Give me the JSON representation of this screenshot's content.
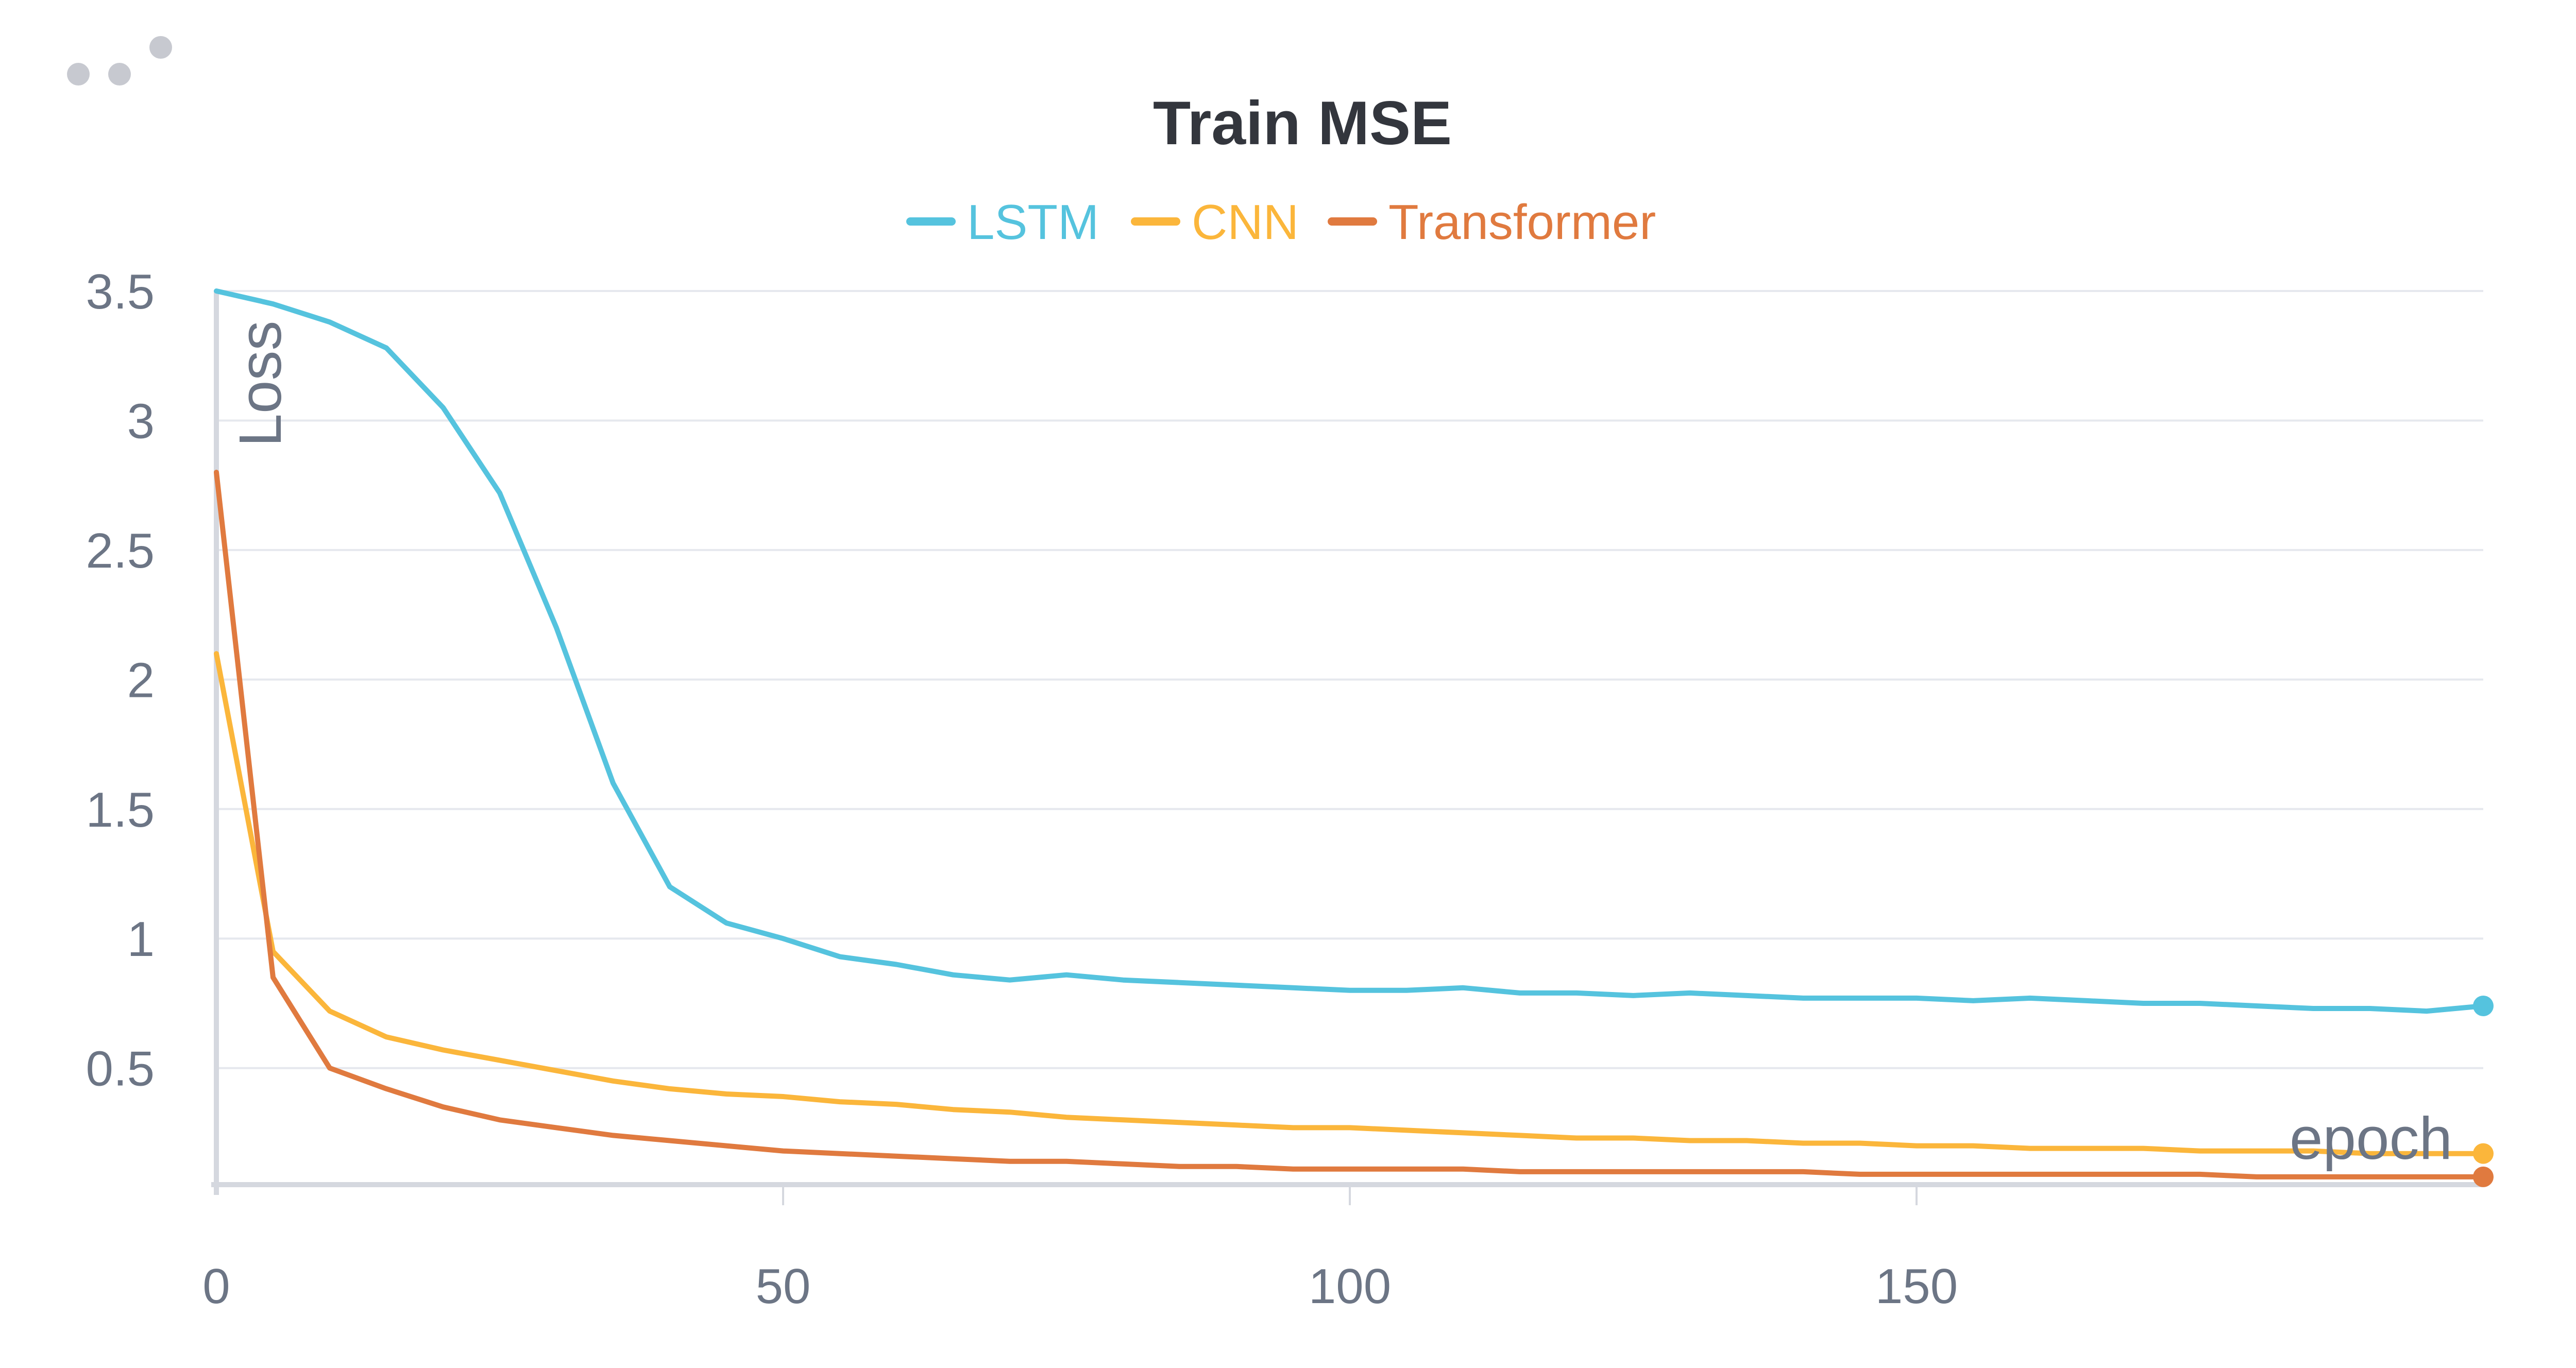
{
  "panel": {
    "menu_icon": "more-dots-icon"
  },
  "chart_data": {
    "type": "line",
    "title": "Train MSE",
    "xlabel": "epoch",
    "ylabel": "Loss",
    "xlim": [
      0,
      200
    ],
    "ylim": [
      0.05,
      3.5
    ],
    "xticks": [
      0,
      50,
      100,
      150
    ],
    "xtick_labels": [
      "0",
      "50",
      "100",
      "150"
    ],
    "yticks": [
      0.5,
      1,
      1.5,
      2,
      2.5,
      3,
      3.5
    ],
    "ytick_labels": [
      "0.5",
      "1",
      "1.5",
      "2",
      "2.5",
      "3",
      "3.5"
    ],
    "grid": true,
    "legend": "top-center",
    "x": [
      0,
      5,
      10,
      15,
      20,
      25,
      30,
      35,
      40,
      45,
      50,
      55,
      60,
      65,
      70,
      75,
      80,
      85,
      90,
      95,
      100,
      105,
      110,
      115,
      120,
      125,
      130,
      135,
      140,
      145,
      150,
      155,
      160,
      165,
      170,
      175,
      180,
      185,
      190,
      195,
      200
    ],
    "series": [
      {
        "name": "LSTM",
        "color": "#55c3de",
        "values": [
          3.5,
          3.45,
          3.38,
          3.28,
          3.05,
          2.72,
          2.2,
          1.6,
          1.2,
          1.06,
          1.0,
          0.93,
          0.9,
          0.86,
          0.84,
          0.86,
          0.84,
          0.83,
          0.82,
          0.81,
          0.8,
          0.8,
          0.81,
          0.79,
          0.79,
          0.78,
          0.79,
          0.78,
          0.77,
          0.77,
          0.77,
          0.76,
          0.77,
          0.76,
          0.75,
          0.75,
          0.74,
          0.73,
          0.73,
          0.72,
          0.74
        ]
      },
      {
        "name": "CNN",
        "color": "#fbb63b",
        "values": [
          2.1,
          0.95,
          0.72,
          0.62,
          0.57,
          0.53,
          0.49,
          0.45,
          0.42,
          0.4,
          0.39,
          0.37,
          0.36,
          0.34,
          0.33,
          0.31,
          0.3,
          0.29,
          0.28,
          0.27,
          0.27,
          0.26,
          0.25,
          0.24,
          0.23,
          0.23,
          0.22,
          0.22,
          0.21,
          0.21,
          0.2,
          0.2,
          0.19,
          0.19,
          0.19,
          0.18,
          0.18,
          0.18,
          0.17,
          0.17,
          0.17
        ]
      },
      {
        "name": "Transformer",
        "color": "#e07a3f",
        "values": [
          2.8,
          0.85,
          0.5,
          0.42,
          0.35,
          0.3,
          0.27,
          0.24,
          0.22,
          0.2,
          0.18,
          0.17,
          0.16,
          0.15,
          0.14,
          0.14,
          0.13,
          0.12,
          0.12,
          0.11,
          0.11,
          0.11,
          0.11,
          0.1,
          0.1,
          0.1,
          0.1,
          0.1,
          0.1,
          0.09,
          0.09,
          0.09,
          0.09,
          0.09,
          0.09,
          0.09,
          0.08,
          0.08,
          0.08,
          0.08,
          0.08
        ]
      }
    ]
  }
}
